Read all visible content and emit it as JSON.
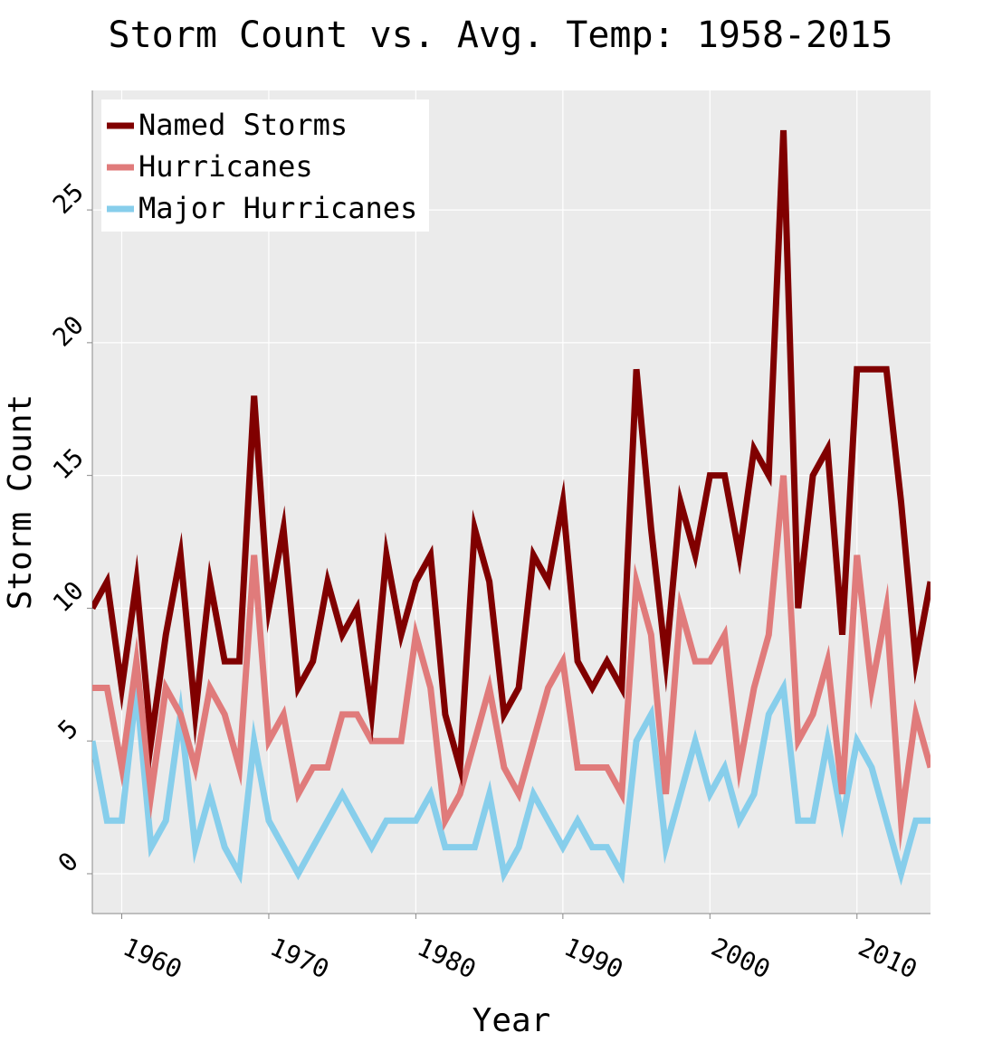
{
  "chart_data": {
    "type": "line",
    "title": "Storm Count vs. Avg. Temp: 1958-2015",
    "xlabel": "Year",
    "ylabel": "Storm Count",
    "xlim": [
      1958,
      2015
    ],
    "ylim": [
      -1.5,
      29.5
    ],
    "x_ticks": [
      "1960",
      "1970",
      "1980",
      "1990",
      "2000",
      "2010"
    ],
    "y_ticks": [
      "0",
      "5",
      "10",
      "15",
      "20",
      "25"
    ],
    "grid": true,
    "legend_position": "top-left",
    "x": [
      1958,
      1959,
      1960,
      1961,
      1962,
      1963,
      1964,
      1965,
      1966,
      1967,
      1968,
      1969,
      1970,
      1971,
      1972,
      1973,
      1974,
      1975,
      1976,
      1977,
      1978,
      1979,
      1980,
      1981,
      1982,
      1983,
      1984,
      1985,
      1986,
      1987,
      1988,
      1989,
      1990,
      1991,
      1992,
      1993,
      1994,
      1995,
      1996,
      1997,
      1998,
      1999,
      2000,
      2001,
      2002,
      2003,
      2004,
      2005,
      2006,
      2007,
      2008,
      2009,
      2010,
      2011,
      2012,
      2013,
      2014,
      2015
    ],
    "series": [
      {
        "name": "Named Storms",
        "color": "#800000",
        "values": [
          10,
          11,
          7,
          11,
          5,
          9,
          12,
          6,
          11,
          8,
          8,
          18,
          10,
          13,
          7,
          8,
          11,
          9,
          10,
          6,
          12,
          9,
          11,
          12,
          6,
          4,
          13,
          11,
          6,
          7,
          12,
          11,
          14,
          8,
          7,
          8,
          7,
          19,
          13,
          8,
          14,
          12,
          15,
          15,
          12,
          16,
          15,
          28,
          10,
          15,
          16,
          9,
          19,
          19,
          19,
          14,
          8,
          11
        ]
      },
      {
        "name": "Hurricanes",
        "color": "#e07b7b",
        "values": [
          7,
          7,
          4,
          8,
          3,
          7,
          6,
          4,
          7,
          6,
          4,
          12,
          5,
          6,
          3,
          4,
          4,
          6,
          6,
          5,
          5,
          5,
          9,
          7,
          2,
          3,
          5,
          7,
          4,
          3,
          5,
          7,
          8,
          4,
          4,
          4,
          3,
          11,
          9,
          3,
          10,
          8,
          8,
          9,
          4,
          7,
          9,
          15,
          5,
          6,
          8,
          3,
          12,
          7,
          10,
          2,
          6,
          4
        ]
      },
      {
        "name": "Major Hurricanes",
        "color": "#87ceeb",
        "values": [
          5,
          2,
          2,
          7,
          1,
          2,
          6,
          1,
          3,
          1,
          0,
          5,
          2,
          1,
          0,
          1,
          2,
          3,
          2,
          1,
          2,
          2,
          2,
          3,
          1,
          1,
          1,
          3,
          0,
          1,
          3,
          2,
          1,
          2,
          1,
          1,
          0,
          5,
          6,
          1,
          3,
          5,
          3,
          4,
          2,
          3,
          6,
          7,
          2,
          2,
          5,
          2,
          5,
          4,
          2,
          0,
          2,
          2
        ]
      }
    ]
  }
}
